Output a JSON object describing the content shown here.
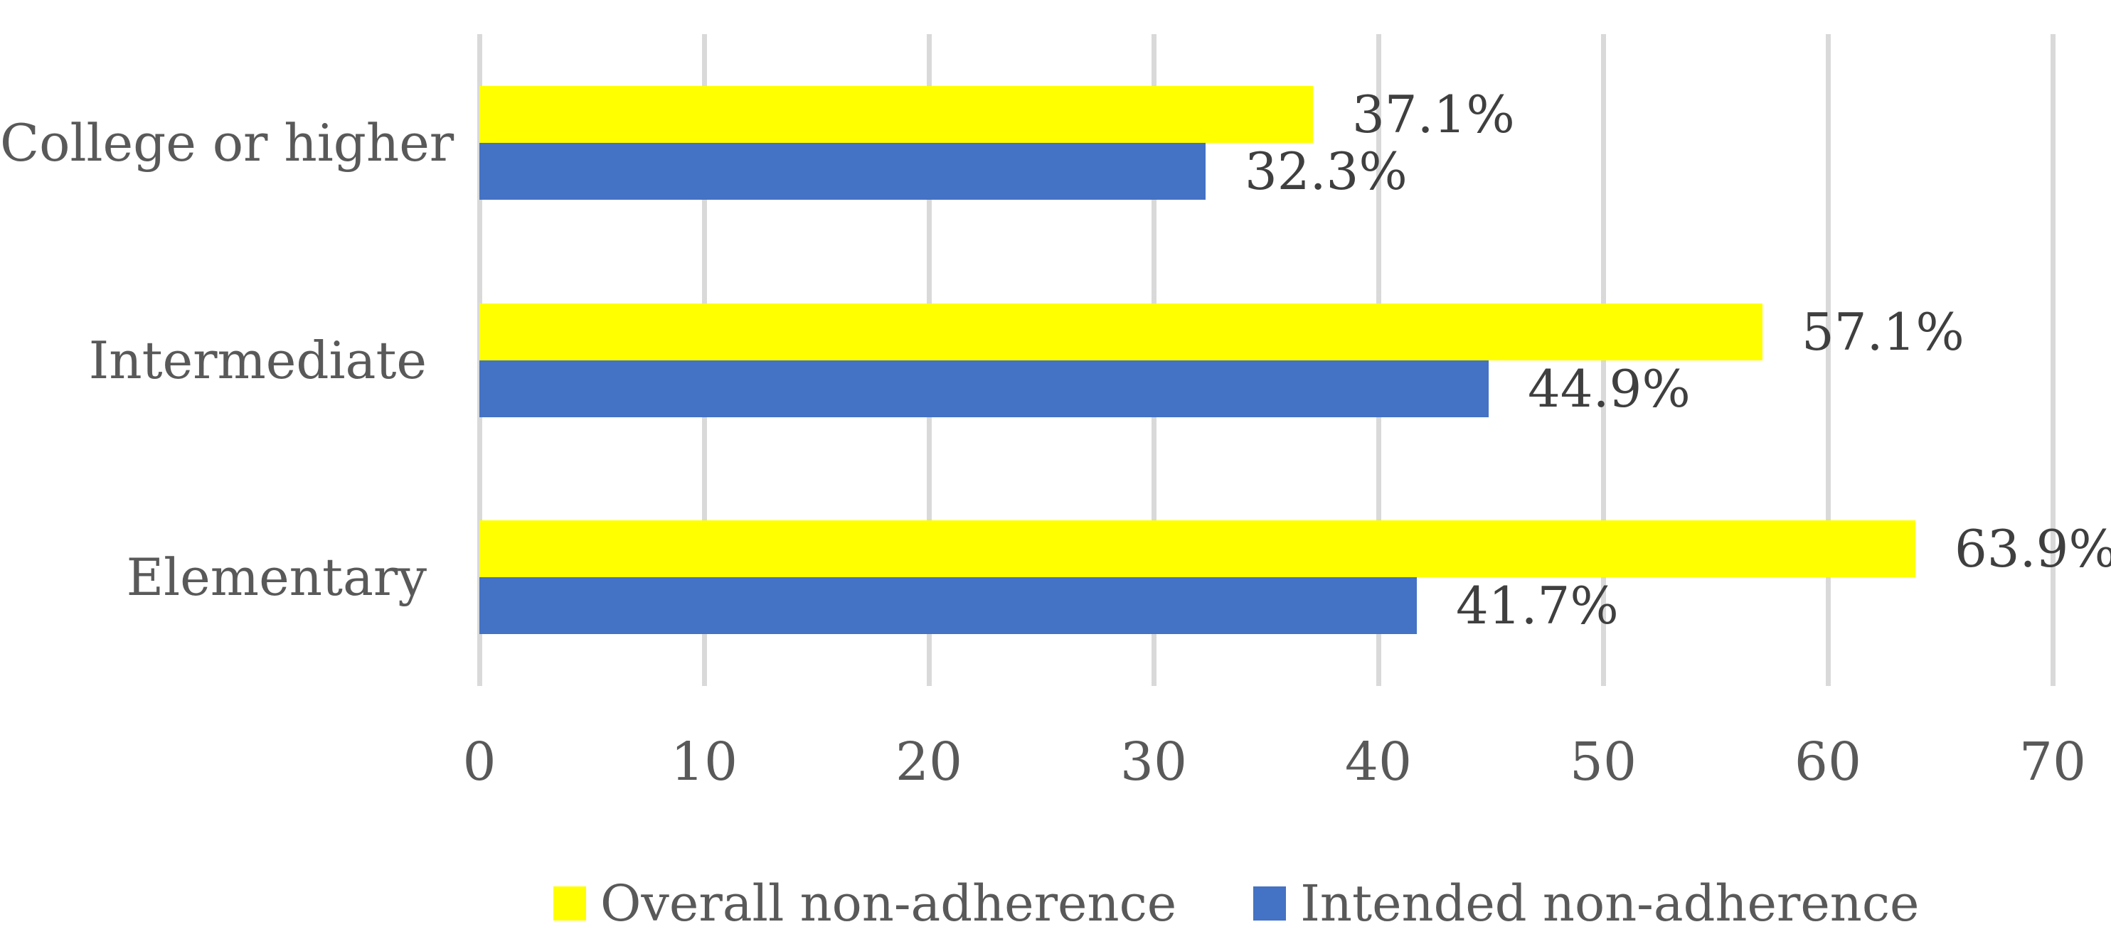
{
  "chart_data": {
    "type": "bar",
    "orientation": "horizontal",
    "title": "",
    "xlabel": "",
    "ylabel": "",
    "categories": [
      "College or higher",
      "Intermediate",
      "Elementary"
    ],
    "series": [
      {
        "name": "Overall non-adherence",
        "color": "#FFFF00",
        "values": [
          37.1,
          57.1,
          63.9
        ],
        "data_labels": [
          "37.1%",
          "57.1%",
          "63.9%"
        ]
      },
      {
        "name": "Intended non-adherence",
        "color": "#4472C4",
        "values": [
          32.3,
          44.9,
          41.7
        ],
        "data_labels": [
          "32.3%",
          "44.9%",
          "41.7%"
        ]
      }
    ],
    "xlim": [
      0,
      70
    ],
    "xticks": [
      "0",
      "10",
      "20",
      "30",
      "40",
      "50",
      "60",
      "70"
    ],
    "grid": true,
    "gridline_color": "#D9D9D9",
    "axis_text_color": "#595959",
    "data_label_color": "#3f3f3f",
    "legend_position": "bottom"
  }
}
